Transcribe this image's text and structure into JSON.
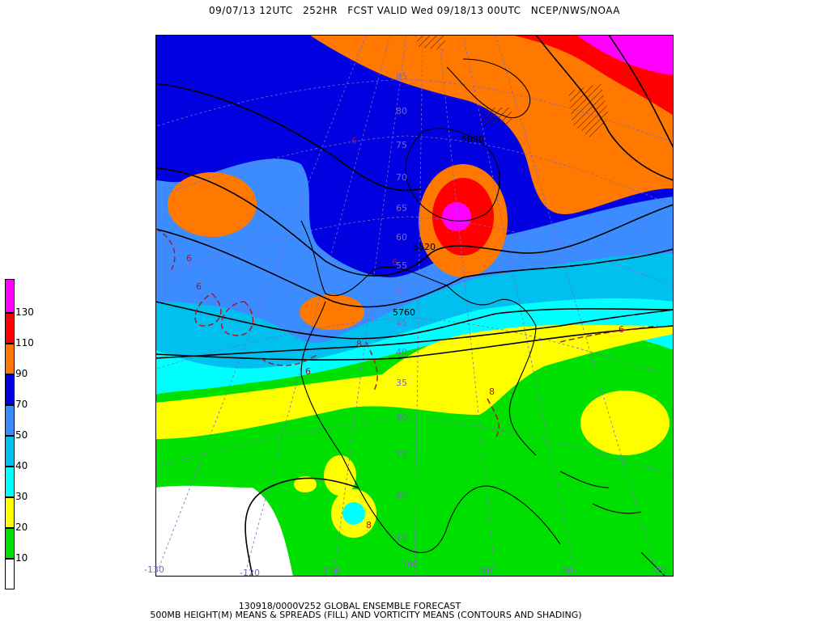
{
  "header": {
    "init": "09/07/13 12UTC",
    "lead": "252HR",
    "valid": "FCST VALID Wed 09/18/13 00UTC",
    "agency": "NCEP/NWS/NOAA"
  },
  "legend": {
    "colors": [
      "#ffffff",
      "#00e000",
      "#ffff00",
      "#00ffff",
      "#00c0f0",
      "#3c8cff",
      "#0000e0",
      "#ff7800",
      "#ff0000",
      "#ff00ff"
    ],
    "labels": [
      "10",
      "20",
      "30",
      "40",
      "50",
      "70",
      "90",
      "110",
      "130"
    ]
  },
  "map": {
    "contour_labels": [
      "5520",
      "5760",
      "5880"
    ],
    "vorticity_labels": [
      "6",
      "6",
      "6",
      "8",
      "8",
      "6",
      "8",
      "6",
      "6"
    ],
    "lat_labels": [
      "85",
      "80",
      "75",
      "70",
      "65",
      "60",
      "55",
      "50",
      "45",
      "40",
      "35",
      "30",
      "25",
      "20",
      "15"
    ],
    "lon_labels": [
      "-130",
      "-120",
      "-110",
      "-100",
      "-90",
      "-80",
      "-70"
    ]
  },
  "footer": {
    "line1": "130918/0000V252 GLOBAL ENSEMBLE FORECAST",
    "line2": "500MB HEIGHT(M) MEANS & SPREADS (FILL) AND VORTICITY MEANS (CONTOURS AND SHADING)"
  }
}
